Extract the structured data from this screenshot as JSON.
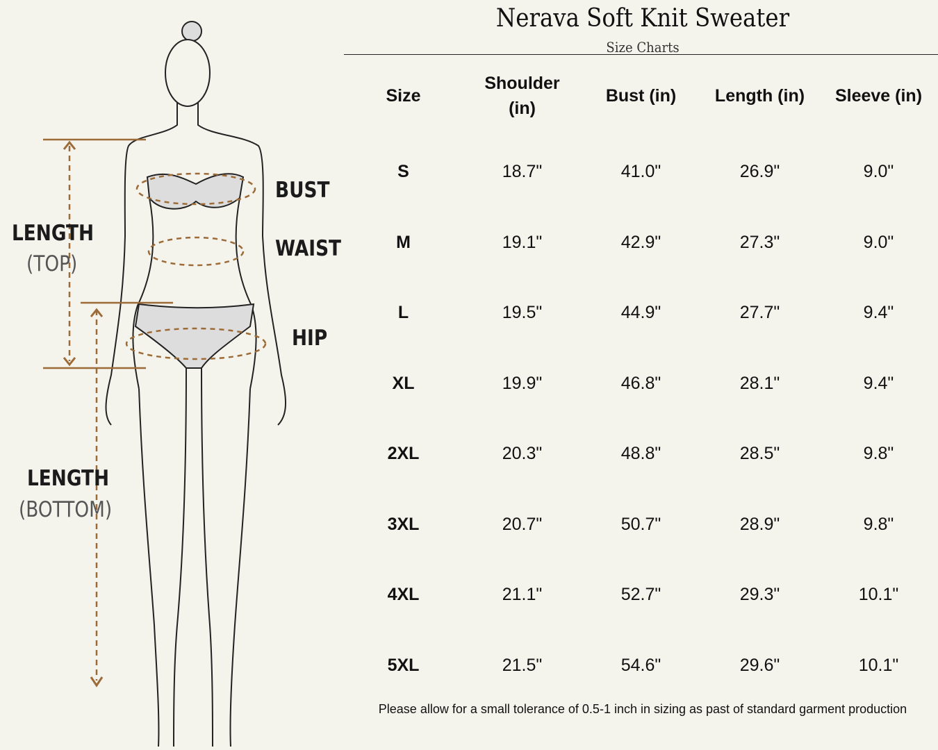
{
  "title": "Nerava Soft Knit Sweater",
  "subtitle": "Size Charts",
  "figure": {
    "labels": {
      "bust": "BUST",
      "waist": "WAIST",
      "hip": "HIP",
      "length_top": "LENGTH",
      "length_top_sub": "(TOP)",
      "length_bottom": "LENGTH",
      "length_bottom_sub": "(BOTTOM)"
    },
    "accent_color": "#9c6b37"
  },
  "table": {
    "headers": [
      "Size",
      "Shoulder (in)",
      "Bust (in)",
      "Length (in)",
      "Sleeve (in)"
    ],
    "rows": [
      [
        "S",
        "18.7\"",
        "41.0\"",
        "26.9\"",
        "9.0\""
      ],
      [
        "M",
        "19.1\"",
        "42.9\"",
        "27.3\"",
        "9.0\""
      ],
      [
        "L",
        "19.5\"",
        "44.9\"",
        "27.7\"",
        "9.4\""
      ],
      [
        "XL",
        "19.9\"",
        "46.8\"",
        "28.1\"",
        "9.4\""
      ],
      [
        "2XL",
        "20.3\"",
        "48.8\"",
        "28.5\"",
        "9.8\""
      ],
      [
        "3XL",
        "20.7\"",
        "50.7\"",
        "28.9\"",
        "9.8\""
      ],
      [
        "4XL",
        "21.1\"",
        "52.7\"",
        "29.3\"",
        "10.1\""
      ],
      [
        "5XL",
        "21.5\"",
        "54.6\"",
        "29.6\"",
        "10.1\""
      ]
    ]
  },
  "note": "Please allow for a small tolerance of 0.5-1 inch in sizing as past of standard garment production"
}
